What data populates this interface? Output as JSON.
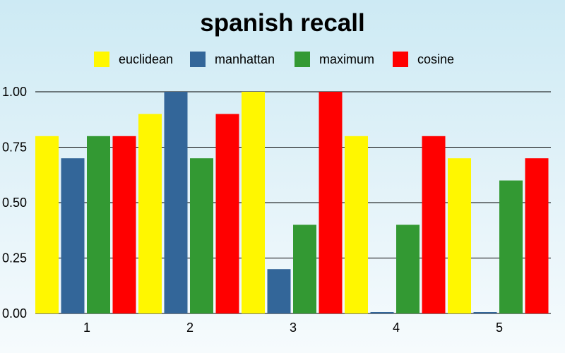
{
  "chart_data": {
    "type": "bar",
    "title": "spanish recall",
    "xlabel": "",
    "ylabel": "",
    "categories": [
      "1",
      "2",
      "3",
      "4",
      "5"
    ],
    "series": [
      {
        "name": "euclidean",
        "color": "#fff700",
        "values": [
          0.8,
          0.9,
          1.0,
          0.8,
          0.7
        ]
      },
      {
        "name": "manhattan",
        "color": "#336699",
        "values": [
          0.7,
          1.0,
          0.2,
          0.0,
          0.0
        ]
      },
      {
        "name": "maximum",
        "color": "#339933",
        "values": [
          0.8,
          0.7,
          0.4,
          0.4,
          0.6
        ]
      },
      {
        "name": "cosine",
        "color": "#ff0000",
        "values": [
          0.8,
          0.9,
          1.0,
          0.8,
          0.7
        ]
      }
    ],
    "yticks": [
      "0.00",
      "0.25",
      "0.50",
      "0.75",
      "1.00"
    ],
    "ylim": [
      0,
      1
    ],
    "grid": true,
    "legend_position": "top"
  }
}
